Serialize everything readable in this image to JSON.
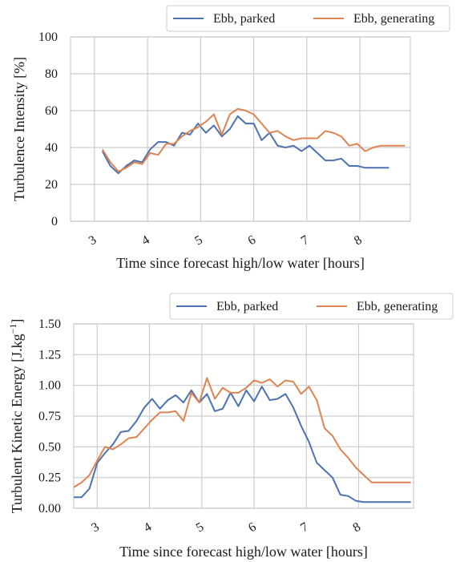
{
  "colors": {
    "parked": "#4c72b0",
    "generating": "#dd8452",
    "grid": "#cccccc",
    "frame": "#cccccc"
  },
  "chart_data": [
    {
      "type": "line",
      "title": "",
      "xlabel": "Time since forecast high/low water [hours]",
      "ylabel": "Turbulence Intensity [%]",
      "xlim": [
        2.55,
        8.95
      ],
      "ylim": [
        0,
        100
      ],
      "xticks": [
        3,
        4,
        5,
        6,
        7,
        8
      ],
      "yticks": [
        0,
        20,
        40,
        60,
        80,
        100
      ],
      "grid": true,
      "legend_position": "top-right, above plot",
      "series": [
        {
          "name": "Ebb, parked",
          "color": "#4c72b0",
          "x": [
            3.15,
            3.3,
            3.45,
            3.6,
            3.75,
            3.9,
            4.05,
            4.2,
            4.35,
            4.5,
            4.65,
            4.8,
            4.95,
            5.1,
            5.25,
            5.4,
            5.55,
            5.7,
            5.85,
            6.0,
            6.15,
            6.3,
            6.45,
            6.6,
            6.75,
            6.9,
            7.05,
            7.2,
            7.35,
            7.5,
            7.65,
            7.8,
            7.95,
            8.1,
            8.25,
            8.4,
            8.55
          ],
          "y": [
            38,
            30,
            26,
            30,
            33,
            32,
            39,
            43,
            43,
            41,
            48,
            47,
            53,
            48,
            52,
            46,
            50,
            57,
            53,
            53,
            44,
            48,
            41,
            40,
            41,
            38,
            41,
            37,
            33,
            33,
            34,
            30,
            30,
            29,
            29,
            29,
            29
          ]
        },
        {
          "name": "Ebb, generating",
          "color": "#dd8452",
          "x": [
            3.15,
            3.3,
            3.45,
            3.6,
            3.75,
            3.9,
            4.05,
            4.2,
            4.35,
            4.5,
            4.65,
            4.8,
            4.95,
            5.1,
            5.25,
            5.4,
            5.55,
            5.7,
            5.85,
            6.0,
            6.15,
            6.3,
            6.45,
            6.6,
            6.75,
            6.9,
            7.05,
            7.2,
            7.35,
            7.5,
            7.65,
            7.8,
            7.95,
            8.1,
            8.25,
            8.4,
            8.55,
            8.7,
            8.85
          ],
          "y": [
            39,
            32,
            27,
            29,
            32,
            31,
            37,
            36,
            42,
            42,
            46,
            49,
            51,
            54,
            58,
            47,
            58,
            61,
            60,
            58,
            53,
            48,
            49,
            46,
            44,
            45,
            45,
            45,
            49,
            48,
            46,
            41,
            42,
            38,
            40,
            41,
            41,
            41,
            41
          ]
        }
      ]
    },
    {
      "type": "line",
      "title": "",
      "xlabel": "Time since forecast high/low water [hours]",
      "ylabel": "Turbulent Kinetic Energy [J.kg−1]",
      "ylabel_base": "Turbulent Kinetic Energy [J.kg",
      "ylabel_sup": "−1",
      "ylabel_end": "]",
      "xlim": [
        2.55,
        9.05
      ],
      "ylim": [
        0,
        1.5
      ],
      "xticks": [
        3,
        4,
        5,
        6,
        7,
        8
      ],
      "yticks": [
        0.0,
        0.25,
        0.5,
        0.75,
        1.0,
        1.25,
        1.5
      ],
      "ytick_labels": [
        "0.00",
        "0.25",
        "0.50",
        "0.75",
        "1.00",
        "1.25",
        "1.50"
      ],
      "grid": true,
      "legend_position": "top-right, above plot",
      "series": [
        {
          "name": "Ebb, parked",
          "color": "#4c72b0",
          "x": [
            2.55,
            2.7,
            2.85,
            3.0,
            3.15,
            3.3,
            3.45,
            3.6,
            3.75,
            3.9,
            4.05,
            4.2,
            4.35,
            4.5,
            4.65,
            4.8,
            4.95,
            5.1,
            5.25,
            5.4,
            5.55,
            5.7,
            5.85,
            6.0,
            6.15,
            6.3,
            6.45,
            6.6,
            6.75,
            6.9,
            7.05,
            7.2,
            7.35,
            7.5,
            7.65,
            7.8,
            7.95,
            8.1,
            8.25,
            8.4,
            8.55,
            8.7,
            8.85,
            9.0
          ],
          "y": [
            0.09,
            0.09,
            0.16,
            0.37,
            0.45,
            0.52,
            0.62,
            0.63,
            0.71,
            0.82,
            0.89,
            0.81,
            0.88,
            0.92,
            0.86,
            0.96,
            0.86,
            0.93,
            0.79,
            0.81,
            0.94,
            0.83,
            0.96,
            0.87,
            0.99,
            0.88,
            0.89,
            0.93,
            0.82,
            0.67,
            0.54,
            0.37,
            0.31,
            0.25,
            0.11,
            0.1,
            0.06,
            0.05,
            0.05,
            0.05,
            0.05,
            0.05,
            0.05,
            0.05
          ]
        },
        {
          "name": "Ebb, generating",
          "color": "#dd8452",
          "x": [
            2.55,
            2.7,
            2.85,
            3.0,
            3.15,
            3.3,
            3.45,
            3.6,
            3.75,
            3.9,
            4.05,
            4.2,
            4.35,
            4.5,
            4.65,
            4.8,
            4.95,
            5.1,
            5.25,
            5.4,
            5.55,
            5.7,
            5.85,
            6.0,
            6.15,
            6.3,
            6.45,
            6.6,
            6.75,
            6.9,
            7.05,
            7.2,
            7.35,
            7.5,
            7.65,
            7.8,
            7.95,
            8.1,
            8.25,
            8.4,
            8.55,
            8.7,
            8.85,
            9.0
          ],
          "y": [
            0.17,
            0.21,
            0.27,
            0.39,
            0.5,
            0.48,
            0.52,
            0.57,
            0.58,
            0.65,
            0.72,
            0.78,
            0.78,
            0.79,
            0.71,
            0.94,
            0.86,
            1.06,
            0.89,
            0.98,
            0.94,
            0.94,
            0.98,
            1.04,
            1.02,
            1.05,
            0.99,
            1.04,
            1.03,
            0.93,
            0.99,
            0.88,
            0.65,
            0.59,
            0.48,
            0.41,
            0.33,
            0.27,
            0.21,
            0.21,
            0.21,
            0.21,
            0.21,
            0.21
          ]
        }
      ]
    }
  ]
}
